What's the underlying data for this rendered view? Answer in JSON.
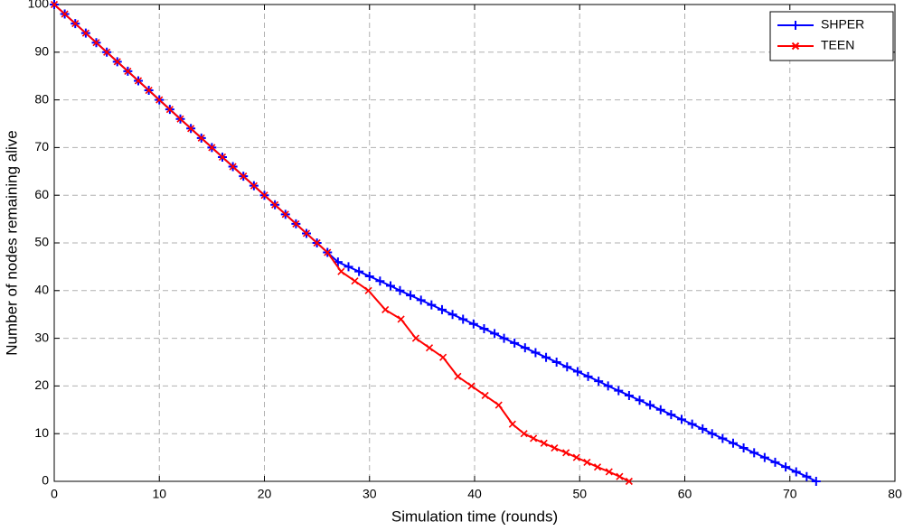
{
  "chart_data": {
    "type": "line",
    "x_label": "Simulation time (rounds)",
    "y_label": "Number of nodes remaining alive",
    "xlim": [
      0,
      80
    ],
    "xticks": [
      0,
      10,
      20,
      30,
      40,
      50,
      60,
      70,
      80
    ],
    "ylim": [
      0,
      100
    ],
    "yticks": [
      0,
      10,
      20,
      30,
      40,
      50,
      60,
      70,
      80,
      90,
      100
    ],
    "grid": true,
    "legend": "upper-right",
    "series": [
      {
        "name": "SHPER",
        "color": "#0000ff",
        "marker": "plus",
        "x": [
          0,
          1,
          2,
          3,
          4,
          5,
          6,
          7,
          8,
          9,
          10,
          11,
          12,
          13,
          14,
          15,
          16,
          17,
          18,
          19,
          20,
          21,
          22,
          23,
          24,
          25,
          26,
          27,
          28.0,
          29.0,
          30.0,
          31.0,
          32.0,
          32.9,
          33.9,
          34.9,
          35.9,
          36.9,
          37.9,
          38.9,
          39.9,
          40.9,
          41.9,
          42.8,
          43.8,
          44.8,
          45.8,
          46.8,
          47.8,
          48.8,
          49.8,
          50.8,
          51.8,
          52.7,
          53.7,
          54.7,
          55.7,
          56.7,
          57.7,
          58.7,
          59.7,
          60.7,
          61.7,
          62.6,
          63.6,
          64.6,
          65.6,
          66.6,
          67.6,
          68.6,
          69.6,
          70.6,
          71.6,
          72.5
        ],
        "values": [
          100,
          98,
          96,
          94,
          92,
          90,
          88,
          86,
          84,
          82,
          80,
          78,
          76,
          74,
          72,
          70,
          68,
          66,
          64,
          62,
          60,
          58,
          56,
          54,
          52,
          50,
          48,
          46,
          45,
          44,
          43,
          42,
          41,
          40,
          39,
          38,
          37,
          36,
          35,
          34,
          33,
          32,
          31,
          30,
          29,
          28,
          27,
          26,
          25,
          24,
          23,
          22,
          21,
          20,
          19,
          18,
          17,
          16,
          15,
          14,
          13,
          12,
          11,
          10,
          9,
          8,
          7,
          6,
          5,
          4,
          3,
          2,
          1,
          0
        ]
      },
      {
        "name": "TEEN",
        "color": "#ff0000",
        "marker": "x",
        "x": [
          0,
          1,
          2,
          3,
          4,
          5,
          6,
          7,
          8,
          9,
          10,
          11,
          12,
          13,
          14,
          15,
          16,
          17,
          18,
          19,
          20,
          21,
          22,
          23,
          24,
          25,
          26,
          27.3,
          28.6,
          29.9,
          31.5,
          33,
          34.4,
          35.7,
          37,
          38.4,
          39.7,
          41,
          42.3,
          43.6,
          44.7,
          45.6,
          46.6,
          47.6,
          48.7,
          49.7,
          50.7,
          51.7,
          52.8,
          53.8,
          54.7
        ],
        "values": [
          100,
          98,
          96,
          94,
          92,
          90,
          88,
          86,
          84,
          82,
          80,
          78,
          76,
          74,
          72,
          70,
          68,
          66,
          64,
          62,
          60,
          58,
          56,
          54,
          52,
          50,
          48,
          44,
          42,
          40,
          36,
          34,
          30,
          28,
          26,
          22,
          20,
          18,
          16,
          12,
          10,
          9,
          8,
          7,
          6,
          5,
          4,
          3,
          2,
          1,
          0
        ]
      }
    ]
  }
}
